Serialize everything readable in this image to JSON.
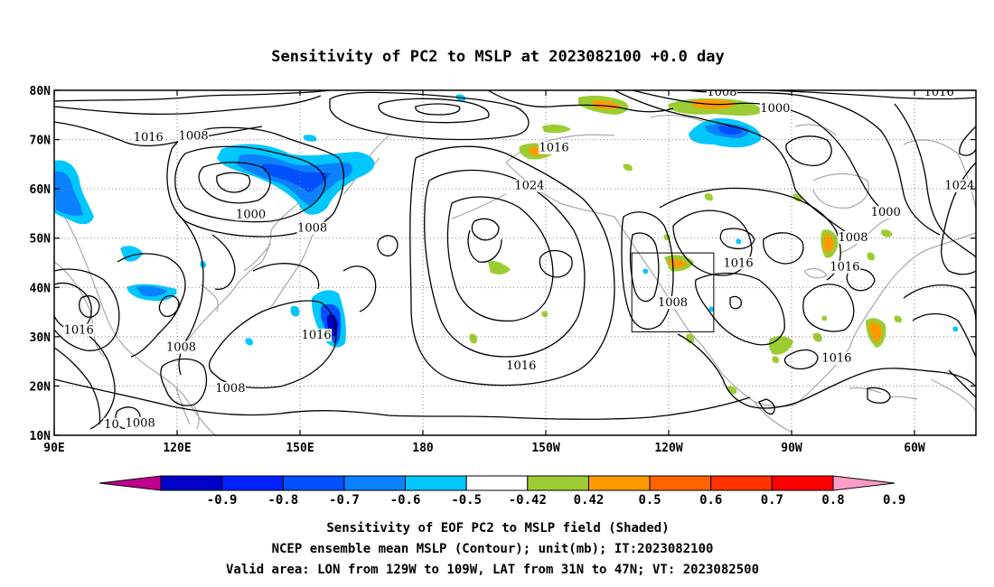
{
  "map": {
    "title": "Sensitivity of PC2 to MSLP at 2023082100 +0.0 day",
    "lat_labels": [
      "80N",
      "70N",
      "60N",
      "50N",
      "40N",
      "30N",
      "20N",
      "10N"
    ],
    "lon_labels": [
      "90E",
      "120E",
      "150E",
      "180",
      "150W",
      "120W",
      "90W",
      "60W"
    ],
    "lat_range": [
      10,
      80
    ],
    "lon_range": [
      90,
      315
    ],
    "grid": true,
    "contour_labels": [
      {
        "text": "1008",
        "lon": 253,
        "lat": 78.9
      },
      {
        "text": "1000",
        "lon": 266,
        "lat": 75.6
      },
      {
        "text": "1016",
        "lon": 306,
        "lat": 78.9
      },
      {
        "text": "1016",
        "lon": 113,
        "lat": 69.7
      },
      {
        "text": "1008",
        "lon": 124,
        "lat": 70.0
      },
      {
        "text": "1016",
        "lon": 212,
        "lat": 67.6
      },
      {
        "text": "1024",
        "lon": 206,
        "lat": 59.9
      },
      {
        "text": "1000",
        "lon": 138,
        "lat": 54.1
      },
      {
        "text": "1008",
        "lon": 153,
        "lat": 51.3
      },
      {
        "text": "1000",
        "lon": 293,
        "lat": 54.5
      },
      {
        "text": "1008",
        "lon": 285,
        "lat": 49.4
      },
      {
        "text": "1016",
        "lon": 257,
        "lat": 44.2
      },
      {
        "text": "1016",
        "lon": 283,
        "lat": 43.4
      },
      {
        "text": "1024",
        "lon": 311,
        "lat": 59.9
      },
      {
        "text": "1008",
        "lon": 241,
        "lat": 36.2
      },
      {
        "text": "1016",
        "lon": 96,
        "lat": 30.6
      },
      {
        "text": "1016",
        "lon": 154,
        "lat": 29.6
      },
      {
        "text": "1008",
        "lon": 121,
        "lat": 27.1
      },
      {
        "text": "1016",
        "lon": 204,
        "lat": 23.4
      },
      {
        "text": "1016",
        "lon": 281,
        "lat": 24.9
      },
      {
        "text": "1008",
        "lon": 133,
        "lat": 18.8
      },
      {
        "text": "1008",
        "lon": 111,
        "lat": 11.7
      },
      {
        "text": "10",
        "lon": 104,
        "lat": 11.5
      }
    ],
    "valid_box": {
      "lon_min": 231,
      "lon_max": 251,
      "lat_min": 31,
      "lat_max": 47
    }
  },
  "colorbar": {
    "labels": [
      "-0.9",
      "-0.8",
      "-0.7",
      "-0.6",
      "-0.5",
      "-0.42",
      "0.42",
      "0.5",
      "0.6",
      "0.7",
      "0.8",
      "0.9"
    ],
    "colors": [
      "#be008c",
      "#0000c8",
      "#0020ff",
      "#0050ff",
      "#0a82ff",
      "#00c8ff",
      "#ffffff",
      "#9bcd32",
      "#ff9b00",
      "#ff6400",
      "#ff3200",
      "#ff0000",
      "#ff9bc8"
    ]
  },
  "caption": {
    "line1": "Sensitivity of EOF PC2 to MSLP field (Shaded)",
    "line2": "NCEP ensemble mean MSLP (Contour); unit(mb); IT:2023082100",
    "line3": "Valid area: LON from 129W to 109W, LAT from 31N to 47N; VT: 2023082500"
  }
}
